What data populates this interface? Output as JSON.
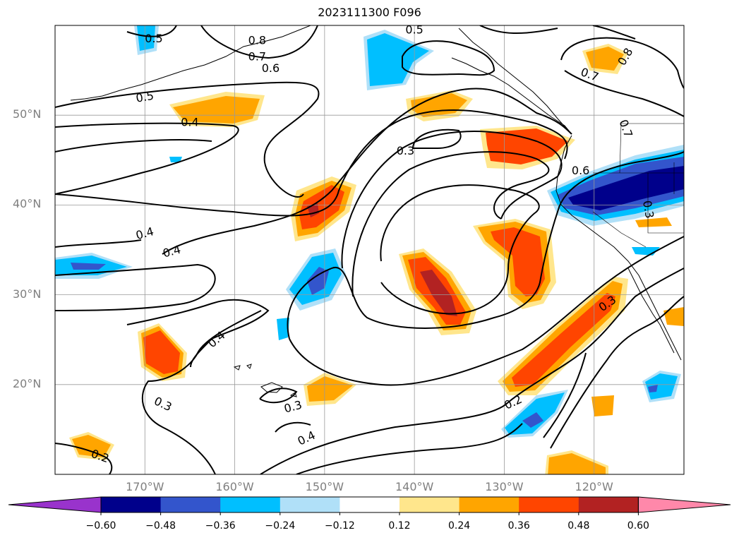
{
  "title": "2023111300 F096",
  "lat_labels": [
    {
      "text": "50°N",
      "lat": 50
    },
    {
      "text": "40°N",
      "lat": 40
    },
    {
      "text": "30°N",
      "lat": 30
    },
    {
      "text": "20°N",
      "lat": 20
    }
  ],
  "lon_labels": [
    {
      "text": "170°W",
      "lon": -170
    },
    {
      "text": "160°W",
      "lon": -160
    },
    {
      "text": "150°W",
      "lon": -150
    },
    {
      "text": "140°W",
      "lon": -140
    },
    {
      "text": "130°W",
      "lon": -130
    },
    {
      "text": "120°W",
      "lon": -120
    }
  ],
  "colorbar": {
    "levels": [
      "−0.60",
      "−0.48",
      "−0.36",
      "−0.24",
      "−0.12",
      "0.12",
      "0.24",
      "0.36",
      "0.48",
      "0.60"
    ],
    "colors": [
      "#9933cc",
      "#00008b",
      "#3355cc",
      "#00bfff",
      "#b0e0f8",
      "#ffffff",
      "#ffe68c",
      "#ffa500",
      "#ff4500",
      "#b22222",
      "#ff88aa"
    ]
  },
  "contour_labels": [
    {
      "text": "0.5",
      "lon": -169.0,
      "lat": 58.5,
      "rot": 0
    },
    {
      "text": "0.8",
      "lon": -157.5,
      "lat": 58.3,
      "rot": 0
    },
    {
      "text": "0.7",
      "lon": -157.5,
      "lat": 56.5,
      "rot": 0
    },
    {
      "text": "0.6",
      "lon": -156.0,
      "lat": 55.2,
      "rot": 0
    },
    {
      "text": "0.5",
      "lon": -140.0,
      "lat": 59.5,
      "rot": 0
    },
    {
      "text": "0.5",
      "lon": -170.0,
      "lat": 52.0,
      "rot": -10
    },
    {
      "text": "0.4",
      "lon": -165.0,
      "lat": 49.2,
      "rot": 0
    },
    {
      "text": "0.3",
      "lon": -141.0,
      "lat": 46.0,
      "rot": 0
    },
    {
      "text": "0.6",
      "lon": -121.5,
      "lat": 43.8,
      "rot": 0
    },
    {
      "text": "0.7",
      "lon": -120.5,
      "lat": 54.5,
      "rot": 20
    },
    {
      "text": "0.8",
      "lon": -116.5,
      "lat": 56.5,
      "rot": -60
    },
    {
      "text": "0.7",
      "lon": -116.5,
      "lat": 48.5,
      "rot": 70
    },
    {
      "text": "0.3",
      "lon": -114.0,
      "lat": 39.5,
      "rot": 80
    },
    {
      "text": "0.4",
      "lon": -170.0,
      "lat": 36.8,
      "rot": -15
    },
    {
      "text": "0.4",
      "lon": -167.0,
      "lat": 34.8,
      "rot": -15
    },
    {
      "text": "0.4",
      "lon": -162.0,
      "lat": 25.0,
      "rot": -40
    },
    {
      "text": "0.3",
      "lon": -168.0,
      "lat": 17.8,
      "rot": 25
    },
    {
      "text": "0.3",
      "lon": -153.5,
      "lat": 17.5,
      "rot": -15
    },
    {
      "text": "0.4",
      "lon": -152.0,
      "lat": 14.0,
      "rot": -25
    },
    {
      "text": "0.2",
      "lon": -175.0,
      "lat": 12.0,
      "rot": 20
    },
    {
      "text": "0.2",
      "lon": -129.0,
      "lat": 18.0,
      "rot": -25
    },
    {
      "text": "0.3",
      "lon": -118.5,
      "lat": 29.0,
      "rot": -35
    }
  ]
}
